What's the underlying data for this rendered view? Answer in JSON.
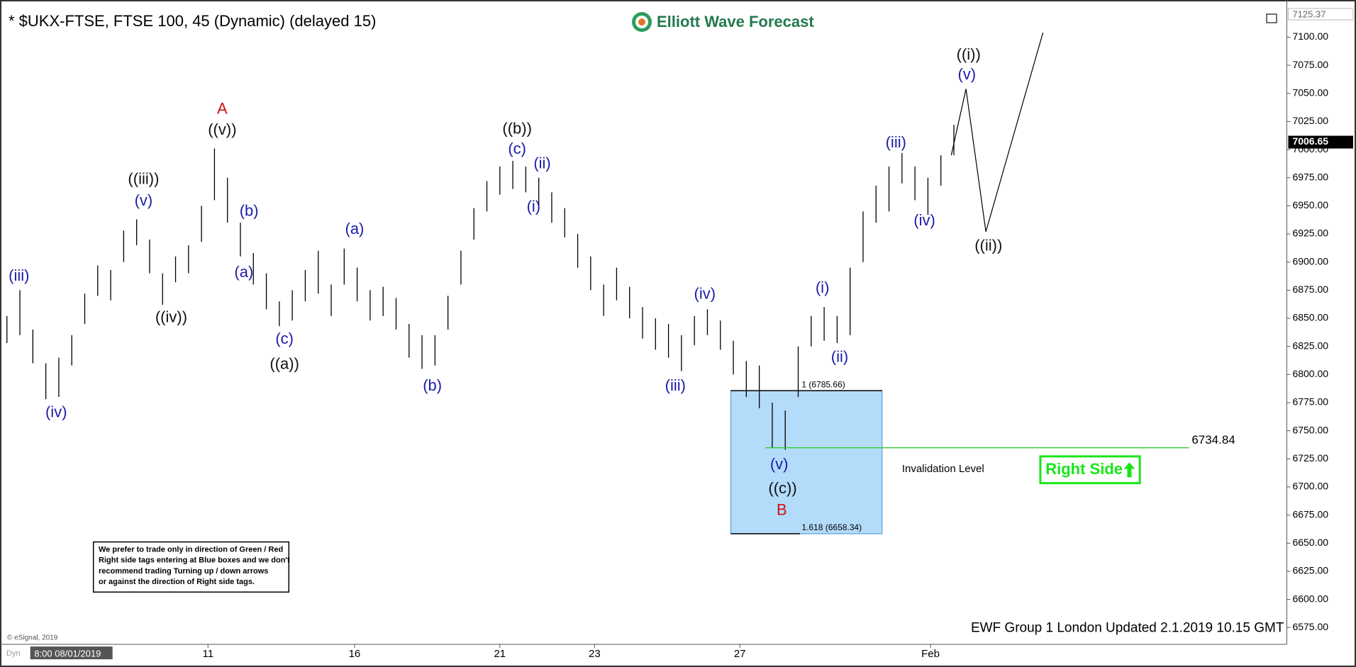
{
  "chart_data": {
    "type": "ohlc",
    "title": "* $UKX-FTSE, FTSE 100, 45 (Dynamic) (delayed 15)",
    "logo": "Elliott Wave Forecast",
    "color": "#000000",
    "high": [
      6852,
      6875,
      6840,
      6810,
      6815,
      6835,
      6872,
      6897,
      6893,
      6928,
      6938,
      6920,
      6890,
      6905,
      6915,
      6950,
      7001,
      6975,
      6935,
      6908,
      6890,
      6865,
      6875,
      6893,
      6910,
      6880,
      6912,
      6895,
      6875,
      6878,
      6868,
      6845,
      6835,
      6835,
      6870,
      6910,
      6948,
      6972,
      6985,
      6990,
      6985,
      6975,
      6962,
      6948,
      6925,
      6905,
      6880,
      6895,
      6878,
      6860,
      6850,
      6845,
      6835,
      6852,
      6858,
      6848,
      6830,
      6812,
      6808,
      6775,
      6768,
      6825,
      6852,
      6860,
      6852,
      6895,
      6945,
      6968,
      6985,
      6997,
      6985,
      6975,
      6995,
      7022
    ],
    "low": [
      6828,
      6835,
      6810,
      6778,
      6780,
      6808,
      6845,
      6870,
      6866,
      6900,
      6915,
      6890,
      6862,
      6882,
      6890,
      6918,
      6955,
      6935,
      6905,
      6880,
      6858,
      6843,
      6848,
      6865,
      6872,
      6852,
      6880,
      6865,
      6848,
      6852,
      6840,
      6815,
      6805,
      6808,
      6840,
      6880,
      6920,
      6945,
      6960,
      6965,
      6962,
      6950,
      6935,
      6922,
      6895,
      6875,
      6852,
      6866,
      6850,
      6832,
      6822,
      6815,
      6803,
      6826,
      6835,
      6822,
      6800,
      6780,
      6770,
      6735,
      6733,
      6780,
      6825,
      6830,
      6828,
      6835,
      6900,
      6935,
      6945,
      6970,
      6955,
      6942,
      6968,
      6995
    ],
    "ylim": [
      6560,
      7125.37
    ],
    "yticks": [
      {
        "value": 6575,
        "label": "6575.00"
      },
      {
        "value": 6600,
        "label": "6600.00"
      },
      {
        "value": 6625,
        "label": "6625.00"
      },
      {
        "value": 6650,
        "label": "6650.00"
      },
      {
        "value": 6675,
        "label": "6675.00"
      },
      {
        "value": 6700,
        "label": "6700.00"
      },
      {
        "value": 6725,
        "label": "6725.00"
      },
      {
        "value": 6750,
        "label": "6750.00"
      },
      {
        "value": 6775,
        "label": "6775.00"
      },
      {
        "value": 6800,
        "label": "6800.00"
      },
      {
        "value": 6825,
        "label": "6825.00"
      },
      {
        "value": 6850,
        "label": "6850.00"
      },
      {
        "value": 6875,
        "label": "6875.00"
      },
      {
        "value": 6900,
        "label": "6900.00"
      },
      {
        "value": 6925,
        "label": "6925.00"
      },
      {
        "value": 6950,
        "label": "6950.00"
      },
      {
        "value": 6975,
        "label": "6975.00"
      },
      {
        "value": 7000,
        "label": "7000.00"
      },
      {
        "value": 7025,
        "label": "7025.00"
      },
      {
        "value": 7050,
        "label": "7050.00"
      },
      {
        "value": 7075,
        "label": "7075.00"
      },
      {
        "value": 7100,
        "label": "7100.00"
      }
    ],
    "start_label": "8:00 08/01/2019",
    "xticks": [
      {
        "value": 15.5,
        "label": "11"
      },
      {
        "value": 26.8,
        "label": "16"
      },
      {
        "value": 38,
        "label": "21"
      },
      {
        "value": 45.3,
        "label": "23"
      },
      {
        "value": 56.5,
        "label": "27"
      },
      {
        "value": 71.2,
        "label": "Feb"
      }
    ],
    "last_price": 7006.65,
    "projection": [
      6995,
      7054,
      6927,
      7104
    ],
    "fib_box": {
      "color": "#b3dcfb",
      "levels": [
        {
          "value": 6785.66,
          "label": "1 (6785.66)"
        },
        {
          "value": 6658.34,
          "label": "1.618 (6658.34)"
        }
      ]
    },
    "invalidation": {
      "value": 6734.84,
      "text": "Invalidation Level",
      "color": "#33cc33"
    },
    "right_side": {
      "text": "Right Side",
      "color": "#19e619"
    },
    "annotations": [
      {
        "text": "(iii)",
        "color": "#1c1ca8"
      },
      {
        "text": "(iv)",
        "color": "#1c1ca8"
      },
      {
        "text": "((iii))",
        "color": "#111111"
      },
      {
        "text": "(v)",
        "color": "#1c1ca8"
      },
      {
        "text": "((iv))",
        "color": "#111111"
      },
      {
        "text": "A",
        "color": "#d01010"
      },
      {
        "text": "((v))",
        "color": "#111111"
      },
      {
        "text": "(b)",
        "color": "#1c1ca8"
      },
      {
        "text": "(a)",
        "color": "#1c1ca8"
      },
      {
        "text": "(c)",
        "color": "#1c1ca8"
      },
      {
        "text": "((a))",
        "color": "#111111"
      },
      {
        "text": "(a)",
        "color": "#1c1ca8"
      },
      {
        "text": "(b)",
        "color": "#1c1ca8"
      },
      {
        "text": "((b))",
        "color": "#111111"
      },
      {
        "text": "(c)",
        "color": "#1c1ca8"
      },
      {
        "text": "(ii)",
        "color": "#1c1ca8"
      },
      {
        "text": "(i)",
        "color": "#1c1ca8"
      },
      {
        "text": "(iv)",
        "color": "#1c1ca8"
      },
      {
        "text": "(iii)",
        "color": "#1c1ca8"
      },
      {
        "text": "(i)",
        "color": "#1c1ca8"
      },
      {
        "text": "(ii)",
        "color": "#1c1ca8"
      },
      {
        "text": "(v)",
        "color": "#1c1ca8"
      },
      {
        "text": "((c))",
        "color": "#111111"
      },
      {
        "text": "B",
        "color": "#d01010"
      },
      {
        "text": "(iii)",
        "color": "#1c1ca8"
      },
      {
        "text": "(iv)",
        "color": "#1c1ca8"
      },
      {
        "text": "((i))",
        "color": "#111111"
      },
      {
        "text": "(v)",
        "color": "#1c1ca8"
      },
      {
        "text": "((ii))",
        "color": "#111111"
      }
    ],
    "disclaimer": [
      "We prefer to trade only in direction of Green / Red",
      "Right side tags entering at Blue boxes and we don't",
      "recommend trading Turning up / down arrows",
      "or against the direction of Right side tags."
    ],
    "copyright": "© eSignal, 2019",
    "mode": "Dyn",
    "footer": "EWF Group 1 London Updated 2.1.2019 10.15 GMT"
  }
}
